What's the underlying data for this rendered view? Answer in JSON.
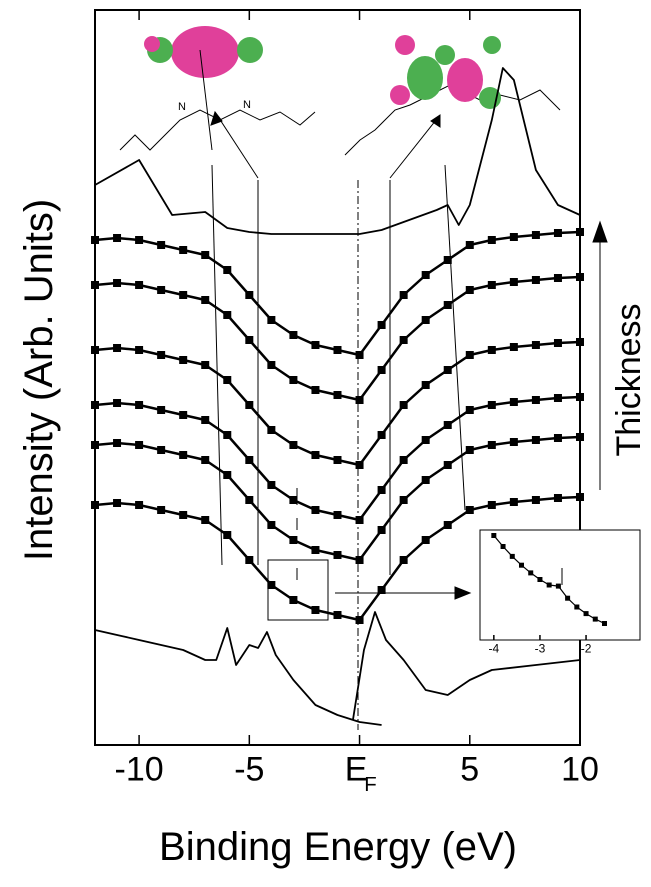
{
  "chart_data": [
    {
      "type": "line",
      "y_label": "Intensity (Arb. Units)",
      "x_label": "Binding Energy (eV)",
      "annotation": "Thickness",
      "xlim": [
        -12,
        10
      ],
      "ylim": [
        0,
        147
      ],
      "xticks": [
        -10,
        -5,
        {
          "value": 0,
          "label": "E",
          "subscript": "F"
        },
        5,
        10
      ],
      "series": [
        {
          "color": "#000000",
          "marker": "none",
          "x": [
            -12,
            -10,
            -8.5,
            -7,
            -6,
            -5,
            -4,
            0,
            1,
            2,
            3.5,
            4,
            4.5,
            5,
            6,
            6.5,
            7,
            8,
            9,
            10
          ],
          "values": [
            112,
            117,
            106,
            106.6,
            103.4,
            102.6,
            102.2,
            102.2,
            103,
            104.6,
            107,
            108,
            104,
            108,
            125,
            135.4,
            133,
            115,
            108,
            106
          ]
        },
        {
          "color": "#000000",
          "marker": "square",
          "x": [
            -12,
            -11,
            -10,
            -9,
            -8,
            -7,
            -6,
            -5,
            -4,
            -3,
            -2,
            -1,
            0,
            1,
            2,
            3,
            4,
            5,
            6,
            7,
            8,
            9,
            10
          ],
          "values": [
            101,
            101.4,
            101,
            100,
            99,
            98,
            95,
            90,
            85,
            82,
            80,
            79,
            78,
            84,
            90,
            94,
            97,
            100,
            101,
            101.6,
            102,
            102.4,
            102.6
          ]
        },
        {
          "color": "#000000",
          "marker": "square",
          "x": [
            -12,
            -11,
            -10,
            -9,
            -8,
            -7,
            -6,
            -5,
            -4,
            -3,
            -2,
            -1,
            0,
            1,
            2,
            3,
            4,
            5,
            6,
            7,
            8,
            9,
            10
          ],
          "values": [
            92,
            92.4,
            92,
            91,
            90,
            89,
            86,
            81,
            76,
            73,
            71,
            70,
            69,
            75,
            81,
            85,
            88,
            91,
            92,
            92.6,
            93,
            93.4,
            93.6
          ]
        },
        {
          "color": "#000000",
          "marker": "square",
          "x": [
            -12,
            -11,
            -10,
            -9,
            -8,
            -7,
            -6,
            -5,
            -4,
            -3,
            -2,
            -1,
            0,
            1,
            2,
            3,
            4,
            5,
            6,
            7,
            8,
            9,
            10
          ],
          "values": [
            79,
            79.4,
            79,
            78,
            77,
            76,
            73,
            68,
            63,
            60,
            58,
            57,
            56,
            62,
            68,
            72,
            75,
            78,
            79,
            79.6,
            80,
            80.4,
            80.6
          ]
        },
        {
          "color": "#000000",
          "marker": "square",
          "x": [
            -12,
            -11,
            -10,
            -9,
            -8,
            -7,
            -6,
            -5,
            -4,
            -3,
            -2,
            -1,
            0,
            1,
            2,
            3,
            4,
            5,
            6,
            7,
            8,
            9,
            10
          ],
          "values": [
            68,
            68.4,
            68,
            67,
            66,
            65,
            62,
            57,
            52,
            49,
            47,
            46,
            45,
            51,
            57,
            61,
            64,
            67,
            68,
            68.6,
            69,
            69.4,
            69.6
          ]
        },
        {
          "color": "#000000",
          "marker": "square",
          "x": [
            -12,
            -11,
            -10,
            -9,
            -8,
            -7,
            -6,
            -5,
            -4,
            -3,
            -2,
            -1,
            0,
            1,
            2,
            3,
            4,
            5,
            6,
            7,
            8,
            9,
            10
          ],
          "values": [
            60,
            60.4,
            60,
            59,
            58,
            57,
            54,
            49,
            44,
            41,
            39,
            38,
            37,
            43,
            49,
            53,
            56,
            59,
            60,
            60.6,
            61,
            61.4,
            61.6
          ]
        },
        {
          "color": "#000000",
          "marker": "square",
          "x": [
            -12,
            -11,
            -10,
            -9,
            -8,
            -7,
            -6,
            -5,
            -4,
            -3,
            -2,
            -1,
            0,
            1,
            2,
            3,
            4,
            5,
            6,
            7,
            8,
            9,
            10
          ],
          "values": [
            48,
            48.4,
            48,
            47,
            46,
            45,
            42,
            37,
            32,
            29,
            27,
            26,
            25,
            31,
            37,
            41,
            44,
            47,
            48,
            48.6,
            49,
            49.4,
            49.6
          ]
        },
        {
          "color": "#000000",
          "marker": "none",
          "x": [
            -12,
            -10,
            -8,
            -7,
            -6.5,
            -6,
            -5.6,
            -5,
            -4.6,
            -4.2,
            -3.8,
            -3,
            -2,
            -1,
            0,
            1
          ],
          "values": [
            23,
            21,
            19,
            17,
            17,
            23.4,
            16,
            20,
            19.4,
            22.6,
            18,
            13,
            8,
            6,
            4.6,
            4
          ]
        },
        {
          "color": "#000000",
          "marker": "none",
          "x": [
            -0.3,
            0.2,
            0.7,
            1.2,
            2,
            3,
            4,
            5,
            6,
            8,
            10
          ],
          "values": [
            5,
            19,
            26.6,
            21,
            17,
            11,
            10,
            13,
            15,
            16,
            17
          ]
        }
      ]
    },
    {
      "type": "line",
      "xlim": [
        -4.3,
        -0.83
      ],
      "ylim": [
        0,
        10
      ],
      "xticks": [
        -4,
        -3,
        -2
      ],
      "series": [
        {
          "color": "#000000",
          "marker": "square",
          "x": [
            -4,
            -3.8,
            -3.6,
            -3.4,
            -3.2,
            -3,
            -2.8,
            -2.6,
            -2.4,
            -2.2,
            -2,
            -1.8,
            -1.6
          ],
          "values": [
            9.5,
            8.5,
            7.6,
            6.8,
            6.1,
            5.5,
            5,
            4.9,
            3.8,
            3,
            2.4,
            1.9,
            1.5
          ]
        }
      ]
    }
  ]
}
